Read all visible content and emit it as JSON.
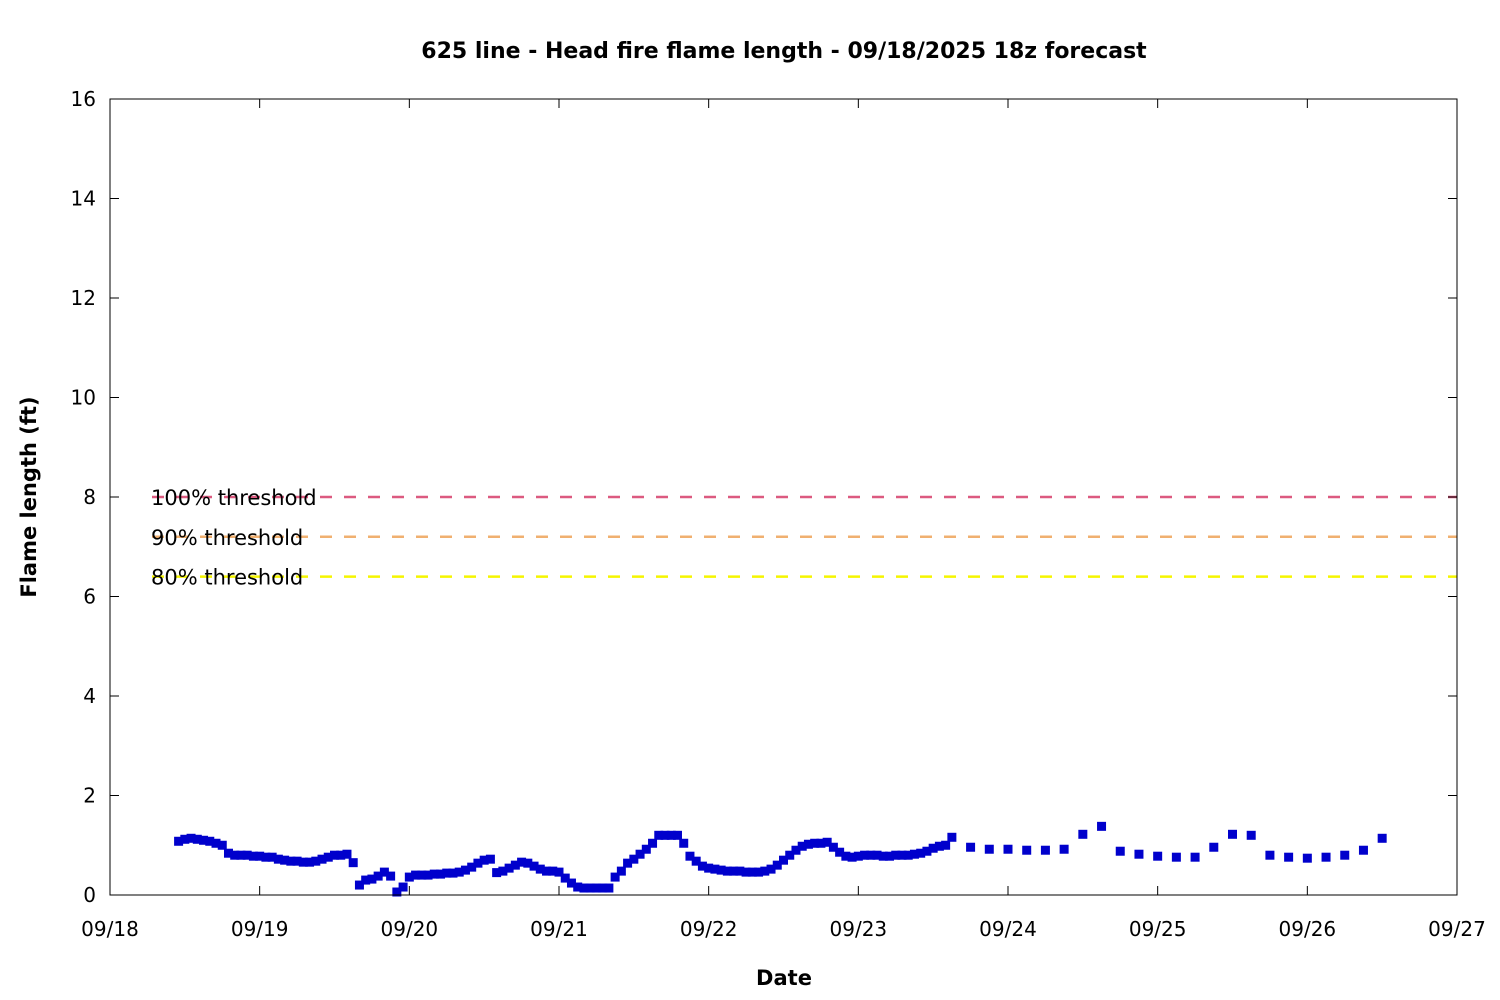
{
  "chart_data": {
    "type": "scatter",
    "title": "625 line - Head fire flame length - 09/18/2025 18z forecast",
    "xlabel": "Date",
    "ylabel": "Flame length (ft)",
    "xlim": [
      "2025-09-18T00:00",
      "2025-09-27T00:00"
    ],
    "ylim": [
      0,
      16
    ],
    "x_tick_labels": [
      "09/18",
      "09/19",
      "09/20",
      "09/21",
      "09/22",
      "09/23",
      "09/24",
      "09/25",
      "09/26",
      "09/27"
    ],
    "y_tick_labels": [
      "0",
      "2",
      "4",
      "6",
      "8",
      "10",
      "12",
      "14",
      "16"
    ],
    "grid": false,
    "legend": "top-left",
    "series": [
      {
        "color": "#0000cc",
        "marker": "square",
        "points": [
          [
            "2025-09-18T11:00",
            1.08
          ],
          [
            "2025-09-18T12:00",
            1.12
          ],
          [
            "2025-09-18T13:00",
            1.14
          ],
          [
            "2025-09-18T14:00",
            1.12
          ],
          [
            "2025-09-18T15:00",
            1.1
          ],
          [
            "2025-09-18T16:00",
            1.08
          ],
          [
            "2025-09-18T17:00",
            1.04
          ],
          [
            "2025-09-18T18:00",
            1.0
          ],
          [
            "2025-09-18T19:00",
            0.84
          ],
          [
            "2025-09-18T20:00",
            0.8
          ],
          [
            "2025-09-18T21:00",
            0.8
          ],
          [
            "2025-09-18T22:00",
            0.8
          ],
          [
            "2025-09-18T23:00",
            0.78
          ],
          [
            "2025-09-19T00:00",
            0.78
          ],
          [
            "2025-09-19T01:00",
            0.76
          ],
          [
            "2025-09-19T02:00",
            0.76
          ],
          [
            "2025-09-19T03:00",
            0.72
          ],
          [
            "2025-09-19T04:00",
            0.7
          ],
          [
            "2025-09-19T05:00",
            0.68
          ],
          [
            "2025-09-19T06:00",
            0.68
          ],
          [
            "2025-09-19T07:00",
            0.66
          ],
          [
            "2025-09-19T08:00",
            0.66
          ],
          [
            "2025-09-19T09:00",
            0.68
          ],
          [
            "2025-09-19T10:00",
            0.72
          ],
          [
            "2025-09-19T11:00",
            0.76
          ],
          [
            "2025-09-19T12:00",
            0.8
          ],
          [
            "2025-09-19T13:00",
            0.8
          ],
          [
            "2025-09-19T14:00",
            0.82
          ],
          [
            "2025-09-19T15:00",
            0.65
          ],
          [
            "2025-09-19T16:00",
            0.2
          ],
          [
            "2025-09-19T17:00",
            0.3
          ],
          [
            "2025-09-19T18:00",
            0.32
          ],
          [
            "2025-09-19T19:00",
            0.38
          ],
          [
            "2025-09-19T20:00",
            0.46
          ],
          [
            "2025-09-19T21:00",
            0.38
          ],
          [
            "2025-09-19T22:00",
            0.06
          ],
          [
            "2025-09-19T23:00",
            0.16
          ],
          [
            "2025-09-20T00:00",
            0.36
          ],
          [
            "2025-09-20T01:00",
            0.4
          ],
          [
            "2025-09-20T02:00",
            0.4
          ],
          [
            "2025-09-20T03:00",
            0.4
          ],
          [
            "2025-09-20T04:00",
            0.42
          ],
          [
            "2025-09-20T05:00",
            0.42
          ],
          [
            "2025-09-20T06:00",
            0.44
          ],
          [
            "2025-09-20T07:00",
            0.44
          ],
          [
            "2025-09-20T08:00",
            0.46
          ],
          [
            "2025-09-20T09:00",
            0.5
          ],
          [
            "2025-09-20T10:00",
            0.56
          ],
          [
            "2025-09-20T11:00",
            0.64
          ],
          [
            "2025-09-20T12:00",
            0.7
          ],
          [
            "2025-09-20T13:00",
            0.72
          ],
          [
            "2025-09-20T14:00",
            0.45
          ],
          [
            "2025-09-20T15:00",
            0.48
          ],
          [
            "2025-09-20T16:00",
            0.54
          ],
          [
            "2025-09-20T17:00",
            0.6
          ],
          [
            "2025-09-20T18:00",
            0.66
          ],
          [
            "2025-09-20T19:00",
            0.64
          ],
          [
            "2025-09-20T20:00",
            0.58
          ],
          [
            "2025-09-20T21:00",
            0.52
          ],
          [
            "2025-09-20T22:00",
            0.48
          ],
          [
            "2025-09-20T23:00",
            0.48
          ],
          [
            "2025-09-21T00:00",
            0.46
          ],
          [
            "2025-09-21T01:00",
            0.34
          ],
          [
            "2025-09-21T02:00",
            0.24
          ],
          [
            "2025-09-21T03:00",
            0.16
          ],
          [
            "2025-09-21T04:00",
            0.14
          ],
          [
            "2025-09-21T05:00",
            0.14
          ],
          [
            "2025-09-21T06:00",
            0.14
          ],
          [
            "2025-09-21T07:00",
            0.14
          ],
          [
            "2025-09-21T08:00",
            0.14
          ],
          [
            "2025-09-21T09:00",
            0.36
          ],
          [
            "2025-09-21T10:00",
            0.48
          ],
          [
            "2025-09-21T11:00",
            0.64
          ],
          [
            "2025-09-21T12:00",
            0.72
          ],
          [
            "2025-09-21T13:00",
            0.82
          ],
          [
            "2025-09-21T14:00",
            0.92
          ],
          [
            "2025-09-21T15:00",
            1.04
          ],
          [
            "2025-09-21T16:00",
            1.2
          ],
          [
            "2025-09-21T17:00",
            1.2
          ],
          [
            "2025-09-21T18:00",
            1.2
          ],
          [
            "2025-09-21T19:00",
            1.2
          ],
          [
            "2025-09-21T20:00",
            1.04
          ],
          [
            "2025-09-21T21:00",
            0.78
          ],
          [
            "2025-09-21T22:00",
            0.68
          ],
          [
            "2025-09-21T23:00",
            0.58
          ],
          [
            "2025-09-22T00:00",
            0.54
          ],
          [
            "2025-09-22T01:00",
            0.52
          ],
          [
            "2025-09-22T02:00",
            0.5
          ],
          [
            "2025-09-22T03:00",
            0.48
          ],
          [
            "2025-09-22T04:00",
            0.48
          ],
          [
            "2025-09-22T05:00",
            0.48
          ],
          [
            "2025-09-22T06:00",
            0.46
          ],
          [
            "2025-09-22T07:00",
            0.46
          ],
          [
            "2025-09-22T08:00",
            0.46
          ],
          [
            "2025-09-22T09:00",
            0.48
          ],
          [
            "2025-09-22T10:00",
            0.52
          ],
          [
            "2025-09-22T11:00",
            0.6
          ],
          [
            "2025-09-22T12:00",
            0.7
          ],
          [
            "2025-09-22T13:00",
            0.8
          ],
          [
            "2025-09-22T14:00",
            0.9
          ],
          [
            "2025-09-22T15:00",
            0.98
          ],
          [
            "2025-09-22T16:00",
            1.02
          ],
          [
            "2025-09-22T17:00",
            1.04
          ],
          [
            "2025-09-22T18:00",
            1.04
          ],
          [
            "2025-09-22T19:00",
            1.06
          ],
          [
            "2025-09-22T20:00",
            0.96
          ],
          [
            "2025-09-22T21:00",
            0.86
          ],
          [
            "2025-09-22T22:00",
            0.78
          ],
          [
            "2025-09-22T23:00",
            0.76
          ],
          [
            "2025-09-23T00:00",
            0.78
          ],
          [
            "2025-09-23T01:00",
            0.8
          ],
          [
            "2025-09-23T02:00",
            0.8
          ],
          [
            "2025-09-23T03:00",
            0.8
          ],
          [
            "2025-09-23T04:00",
            0.78
          ],
          [
            "2025-09-23T05:00",
            0.78
          ],
          [
            "2025-09-23T06:00",
            0.8
          ],
          [
            "2025-09-23T07:00",
            0.8
          ],
          [
            "2025-09-23T08:00",
            0.8
          ],
          [
            "2025-09-23T09:00",
            0.82
          ],
          [
            "2025-09-23T10:00",
            0.84
          ],
          [
            "2025-09-23T11:00",
            0.88
          ],
          [
            "2025-09-23T12:00",
            0.94
          ],
          [
            "2025-09-23T13:00",
            0.98
          ],
          [
            "2025-09-23T14:00",
            1.0
          ],
          [
            "2025-09-23T15:00",
            1.16
          ],
          [
            "2025-09-23T18:00",
            0.96
          ],
          [
            "2025-09-23T21:00",
            0.92
          ],
          [
            "2025-09-24T00:00",
            0.92
          ],
          [
            "2025-09-24T03:00",
            0.9
          ],
          [
            "2025-09-24T06:00",
            0.9
          ],
          [
            "2025-09-24T09:00",
            0.92
          ],
          [
            "2025-09-24T12:00",
            1.22
          ],
          [
            "2025-09-24T15:00",
            1.38
          ],
          [
            "2025-09-24T18:00",
            0.88
          ],
          [
            "2025-09-24T21:00",
            0.82
          ],
          [
            "2025-09-25T00:00",
            0.78
          ],
          [
            "2025-09-25T03:00",
            0.76
          ],
          [
            "2025-09-25T06:00",
            0.76
          ],
          [
            "2025-09-25T09:00",
            0.96
          ],
          [
            "2025-09-25T12:00",
            1.22
          ],
          [
            "2025-09-25T15:00",
            1.2
          ],
          [
            "2025-09-25T18:00",
            0.8
          ],
          [
            "2025-09-25T21:00",
            0.76
          ],
          [
            "2025-09-26T00:00",
            0.74
          ],
          [
            "2025-09-26T03:00",
            0.76
          ],
          [
            "2025-09-26T06:00",
            0.8
          ],
          [
            "2025-09-26T09:00",
            0.9
          ],
          [
            "2025-09-26T12:00",
            1.14
          ]
        ]
      }
    ],
    "thresholds": [
      {
        "label": "100% threshold",
        "value": 8.0,
        "color": "#dc5a80"
      },
      {
        "label": "90% threshold",
        "value": 7.2,
        "color": "#f0b070"
      },
      {
        "label": "80% threshold",
        "value": 6.4,
        "color": "#f5f500"
      }
    ]
  }
}
